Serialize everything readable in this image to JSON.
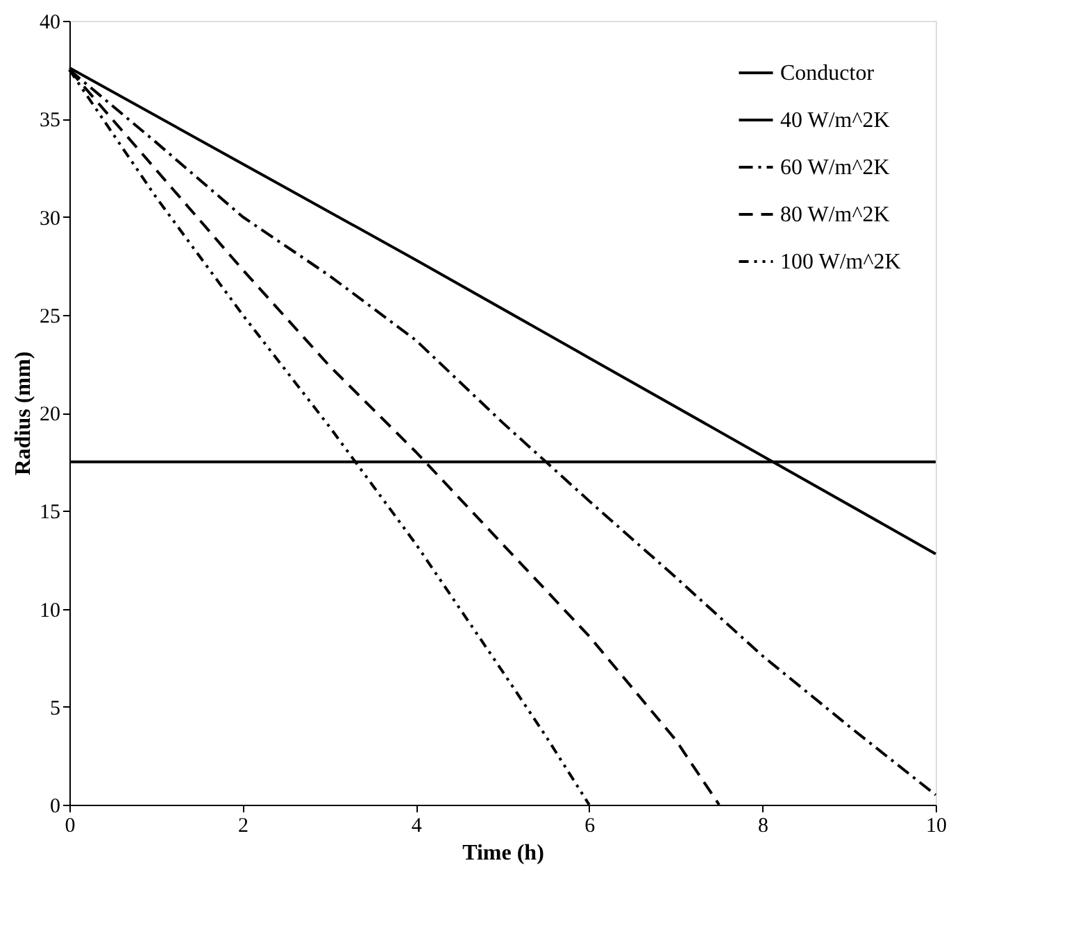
{
  "chart_data": {
    "type": "line",
    "xlabel": "Time (h)",
    "ylabel": "Radius  (mm)",
    "xlim": [
      0,
      10
    ],
    "xticks": [
      0,
      2,
      4,
      6,
      8,
      10
    ],
    "ylim": [
      0,
      40
    ],
    "yticks": [
      0,
      5,
      10,
      15,
      20,
      25,
      30,
      35,
      40
    ],
    "grid": false,
    "legend": "top right",
    "marker": "none",
    "series": [
      {
        "name": "Conductor",
        "color": "#000000",
        "line_style": "solid",
        "x": [
          0,
          10
        ],
        "values": [
          17.5,
          17.5
        ]
      },
      {
        "name": "40 W/m^2K",
        "color": "#000000",
        "line_style": "solid",
        "x": [
          0,
          2,
          4,
          6,
          8,
          10
        ],
        "values": [
          37.6,
          32.7,
          27.8,
          22.8,
          17.8,
          12.8
        ]
      },
      {
        "name": "60 W/m^2K",
        "color": "#000000",
        "line_style": "dashdot",
        "x": [
          0,
          1,
          2,
          3,
          4,
          5,
          6,
          7,
          8,
          9,
          10
        ],
        "values": [
          37.5,
          33.8,
          30,
          27,
          23.7,
          19.5,
          15.5,
          11.6,
          7.6,
          4,
          0.5
        ]
      },
      {
        "name": "80 W/m^2K",
        "color": "#000000",
        "line_style": "dashed",
        "x": [
          0,
          1,
          2,
          3,
          4,
          5,
          6,
          7,
          7.5
        ],
        "values": [
          37.5,
          32.4,
          27.3,
          22.4,
          18,
          13.3,
          8.6,
          3.3,
          0
        ]
      },
      {
        "name": "100 W/m^2K",
        "color": "#000000",
        "line_style": "dashdotdot",
        "x": [
          0,
          1,
          2,
          3,
          4,
          5,
          5.5,
          6
        ],
        "values": [
          37.5,
          31,
          25,
          19.3,
          13.3,
          6.8,
          3.5,
          0
        ]
      }
    ]
  }
}
